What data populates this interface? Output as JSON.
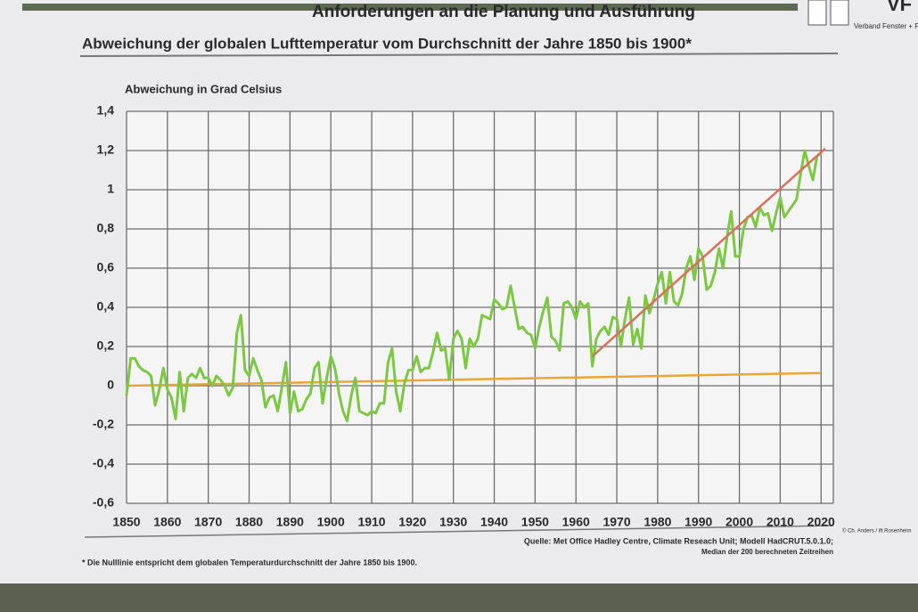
{
  "header": {
    "title": "Anforderungen an die Planung und Ausführung",
    "logo": "VF",
    "logo_subtitle": "Verband Fenster + Fas"
  },
  "chart_data": {
    "type": "line",
    "title": "Abweichung der globalen Lufttemperatur vom Durchschnitt der Jahre 1850 bis 1900*",
    "y_label": "Abweichung in Grad Celsius",
    "xlim": [
      1850,
      2023
    ],
    "xticks": [
      1850,
      1860,
      1870,
      1880,
      1890,
      1900,
      1910,
      1920,
      1930,
      1940,
      1950,
      1960,
      1970,
      1980,
      1990,
      2000,
      2010,
      2020
    ],
    "ylim": [
      -0.6,
      1.4
    ],
    "yticks": [
      {
        "value": -0.6,
        "label": "-0,6"
      },
      {
        "value": -0.4,
        "label": "-0,4"
      },
      {
        "value": -0.2,
        "label": "-0,2"
      },
      0,
      {
        "value": 0.2,
        "label": "0,2"
      },
      {
        "value": 0.4,
        "label": "0,4"
      },
      {
        "value": 0.6,
        "label": "0,6"
      },
      {
        "value": 0.8,
        "label": "0,8"
      },
      1,
      {
        "value": 1.2,
        "label": "1,2"
      },
      {
        "value": 1.4,
        "label": "1,4"
      }
    ],
    "grid": true,
    "series": [
      {
        "color": "#e8a638",
        "x": [
          1850,
          2020
        ],
        "values": [
          0.0,
          0.065
        ]
      },
      {
        "color": "#7cc843",
        "x": [
          1850,
          1851,
          1852,
          1853,
          1854,
          1855,
          1856,
          1857,
          1858,
          1859,
          1860,
          1861,
          1862,
          1863,
          1864,
          1865,
          1866,
          1867,
          1868,
          1869,
          1870,
          1871,
          1872,
          1873,
          1874,
          1875,
          1876,
          1877,
          1878,
          1879,
          1880,
          1881,
          1882,
          1883,
          1884,
          1885,
          1886,
          1887,
          1888,
          1889,
          1890,
          1891,
          1892,
          1893,
          1894,
          1895,
          1896,
          1897,
          1898,
          1899,
          1900,
          1901,
          1902,
          1903,
          1904,
          1905,
          1906,
          1907,
          1908,
          1909,
          1910,
          1911,
          1912,
          1913,
          1914,
          1915,
          1916,
          1917,
          1918,
          1919,
          1920,
          1921,
          1922,
          1923,
          1924,
          1925,
          1926,
          1927,
          1928,
          1929,
          1930,
          1931,
          1932,
          1933,
          1934,
          1935,
          1936,
          1937,
          1938,
          1939,
          1940,
          1941,
          1942,
          1943,
          1944,
          1945,
          1946,
          1947,
          1948,
          1949,
          1950,
          1951,
          1952,
          1953,
          1954,
          1955,
          1956,
          1957,
          1958,
          1959,
          1960,
          1961,
          1962,
          1963,
          1964,
          1965,
          1966,
          1967,
          1968,
          1969,
          1970,
          1971,
          1972,
          1973,
          1974,
          1975,
          1976,
          1977,
          1978,
          1979,
          1980,
          1981,
          1982,
          1983,
          1984,
          1985,
          1986,
          1987,
          1988,
          1989,
          1990,
          1991,
          1992,
          1993,
          1994,
          1995,
          1996,
          1997,
          1998,
          1999,
          2000,
          2001,
          2002,
          2003,
          2004,
          2005,
          2006,
          2007,
          2008,
          2009,
          2010,
          2011,
          2012,
          2013,
          2014,
          2015,
          2016,
          2017,
          2018,
          2019,
          2020
        ],
        "values": [
          -0.05,
          0.14,
          0.14,
          0.1,
          0.08,
          0.07,
          0.05,
          -0.1,
          -0.02,
          0.09,
          -0.02,
          -0.06,
          -0.17,
          0.07,
          -0.13,
          0.04,
          0.06,
          0.04,
          0.09,
          0.04,
          0.04,
          0.0,
          0.05,
          0.03,
          0.0,
          -0.05,
          -0.01,
          0.27,
          0.36,
          0.08,
          0.05,
          0.14,
          0.08,
          0.03,
          -0.11,
          -0.06,
          -0.05,
          -0.13,
          -0.01,
          0.12,
          -0.14,
          -0.03,
          -0.13,
          -0.12,
          -0.07,
          -0.04,
          0.09,
          0.12,
          -0.09,
          0.04,
          0.15,
          0.09,
          -0.04,
          -0.13,
          -0.18,
          -0.05,
          0.04,
          -0.13,
          -0.14,
          -0.15,
          -0.13,
          -0.14,
          -0.09,
          -0.09,
          0.12,
          0.19,
          -0.03,
          -0.13,
          0.01,
          0.08,
          0.08,
          0.15,
          0.07,
          0.09,
          0.09,
          0.17,
          0.27,
          0.18,
          0.19,
          0.03,
          0.24,
          0.28,
          0.24,
          0.09,
          0.24,
          0.2,
          0.24,
          0.36,
          0.35,
          0.34,
          0.44,
          0.42,
          0.39,
          0.4,
          0.51,
          0.4,
          0.29,
          0.3,
          0.27,
          0.26,
          0.19,
          0.3,
          0.38,
          0.45,
          0.25,
          0.23,
          0.18,
          0.42,
          0.43,
          0.4,
          0.34,
          0.43,
          0.4,
          0.42,
          0.1,
          0.24,
          0.28,
          0.3,
          0.26,
          0.35,
          0.34,
          0.2,
          0.34,
          0.45,
          0.21,
          0.29,
          0.19,
          0.46,
          0.37,
          0.44,
          0.52,
          0.58,
          0.42,
          0.58,
          0.43,
          0.41,
          0.47,
          0.6,
          0.66,
          0.54,
          0.7,
          0.66,
          0.49,
          0.51,
          0.58,
          0.7,
          0.6,
          0.76,
          0.89,
          0.66,
          0.66,
          0.8,
          0.86,
          0.87,
          0.81,
          0.91,
          0.87,
          0.88,
          0.79,
          0.88,
          0.96,
          0.86,
          0.89,
          0.92,
          0.95,
          1.08,
          1.2,
          1.12,
          1.05,
          1.17,
          1.19
        ]
      },
      {
        "color": "#d8705c",
        "x": [
          1964,
          2021
        ],
        "values": [
          0.15,
          1.21
        ]
      }
    ]
  },
  "footnote": "* Die Nulllinie entspricht dem globalen Temperaturdurchschnitt der Jahre 1850 bis 1900.",
  "source": "Quelle: Met Office Hadley Centre, Climate Reseach Unit; Modell HadCRUT.5.0.1.0;",
  "source_note": "Median der 200 berechneten Zeitreihen",
  "copyright": "© Ch. Anders / ift Rosenheim"
}
